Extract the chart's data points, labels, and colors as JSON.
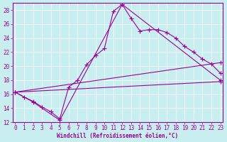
{
  "xlabel": "Windchill (Refroidissement éolien,°C)",
  "bg_color": "#c8eef0",
  "line_color": "#990099",
  "grid_color": "#ffffff",
  "xlim": [
    -0.3,
    23.3
  ],
  "ylim": [
    12,
    29
  ],
  "yticks": [
    12,
    14,
    16,
    18,
    20,
    22,
    24,
    26,
    28
  ],
  "xticks": [
    0,
    1,
    2,
    3,
    4,
    5,
    6,
    7,
    8,
    9,
    10,
    11,
    12,
    13,
    14,
    15,
    16,
    17,
    18,
    19,
    20,
    21,
    22,
    23
  ],
  "lines": [
    {
      "x": [
        0,
        1,
        2,
        3,
        4,
        5,
        6,
        7,
        8,
        9,
        10,
        11,
        12,
        13,
        14,
        15,
        16,
        17,
        18,
        19,
        20,
        21,
        22,
        23
      ],
      "y": [
        16.3,
        15.6,
        15.0,
        14.2,
        13.5,
        12.5,
        17.0,
        18.0,
        20.2,
        21.5,
        22.5,
        27.8,
        28.8,
        26.8,
        25.0,
        25.2,
        25.2,
        24.8,
        24.0,
        22.8,
        22.0,
        21.0,
        20.3,
        19.0
      ]
    },
    {
      "comment": "Triangle line: 0->2->5->12->23",
      "x": [
        0,
        2,
        5,
        12,
        23
      ],
      "y": [
        16.3,
        14.9,
        12.3,
        28.8,
        18.0
      ]
    },
    {
      "x": [
        0,
        23
      ],
      "y": [
        16.3,
        20.5
      ]
    },
    {
      "x": [
        0,
        23
      ],
      "y": [
        16.3,
        17.8
      ]
    }
  ]
}
